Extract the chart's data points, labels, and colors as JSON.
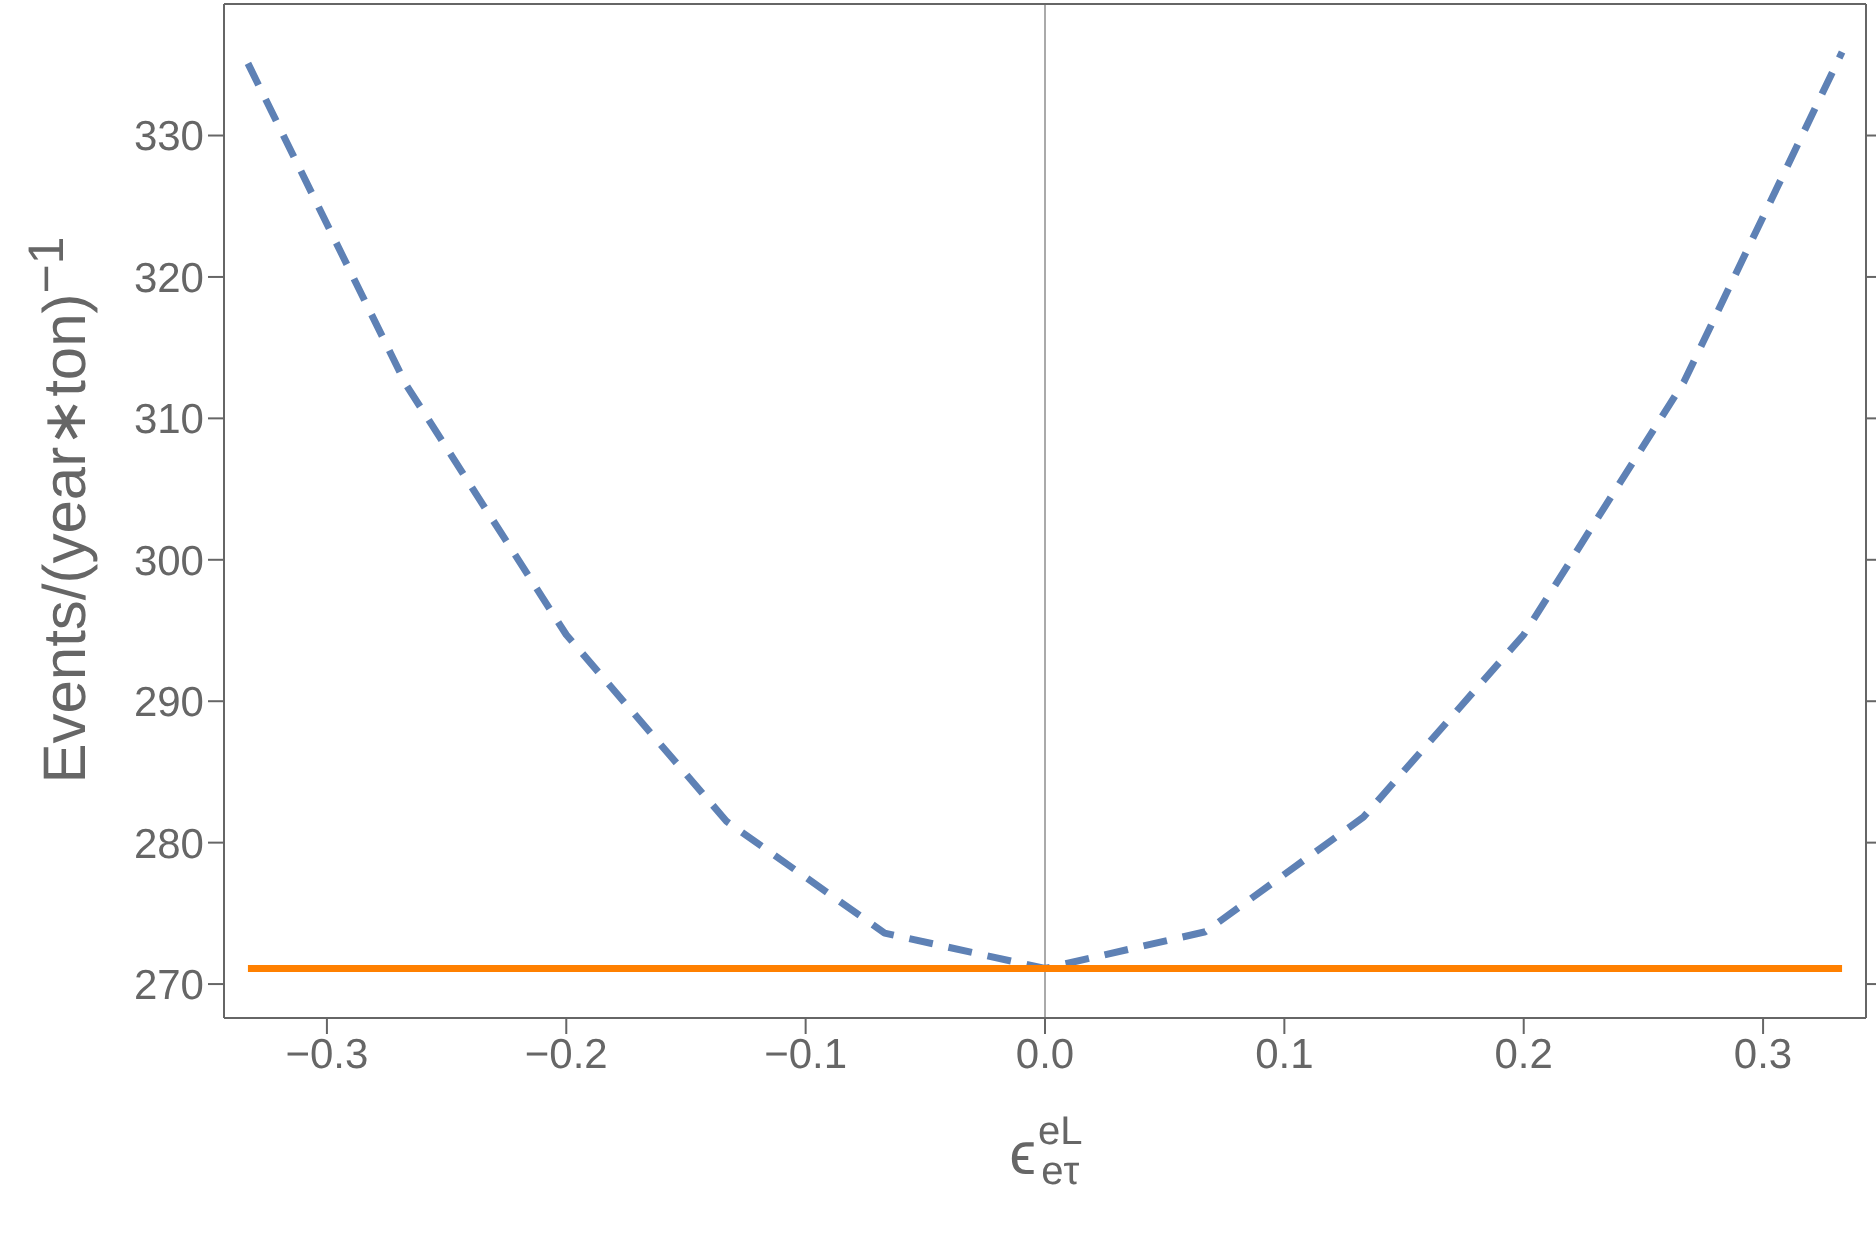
{
  "chart_data": {
    "type": "line",
    "xlabel": "ϵ$_{eτ}$$^{eL}$",
    "ylabel": "Events/(year∗ton)$^{−1}$",
    "series": [
      {
        "color": "#5e81b5",
        "line_style": "dashed",
        "x": [
          -0.333,
          -0.267,
          -0.2,
          -0.133,
          -0.067,
          0,
          0.067,
          0.133,
          0.2,
          0.267,
          0.333
        ],
        "values": [
          335.1,
          312.4,
          294.7,
          281.5,
          273.6,
          271.1,
          273.7,
          281.8,
          294.7,
          312.6,
          335.9
        ]
      },
      {
        "color": "#ff8000",
        "line_style": "solid",
        "x": [
          -0.333,
          0.333
        ],
        "values": [
          271.1,
          271.1
        ]
      }
    ],
    "xlim": [
      -0.343,
      0.343
    ],
    "xticks": [
      -0.3,
      -0.2,
      -0.1,
      {
        "value": 0,
        "label": "0.0"
      },
      0.1,
      0.2,
      0.3
    ],
    "ylim": [
      267.6,
      339.3
    ],
    "yticks": [
      270,
      280,
      290,
      300,
      310,
      320,
      330
    ],
    "ref_lines": [
      {
        "axis": "x",
        "value": 0,
        "color": "#aaaaaa"
      }
    ],
    "legend": false,
    "marker": "none"
  }
}
